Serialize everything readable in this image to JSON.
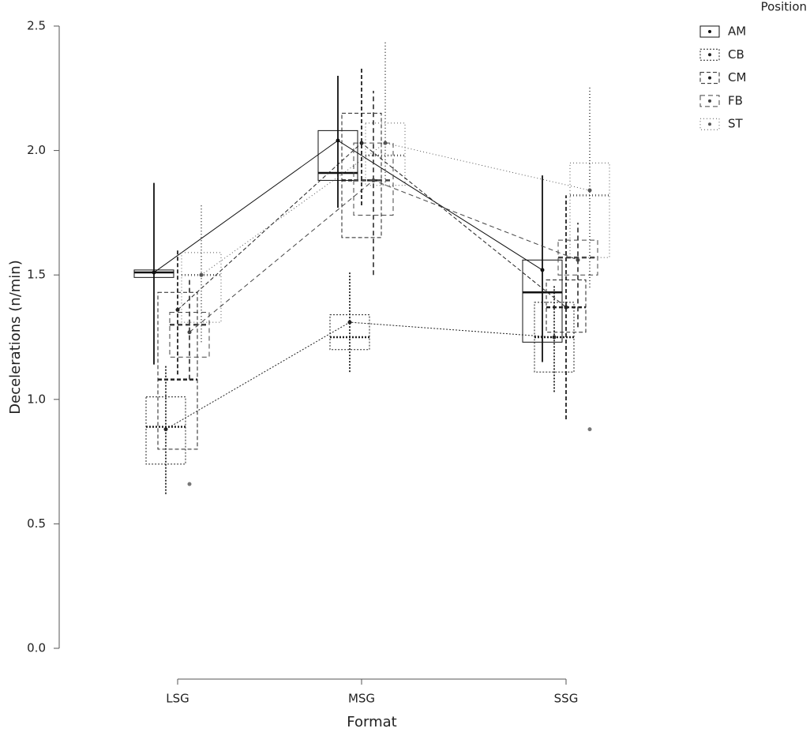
{
  "chart_data": {
    "type": "box",
    "x_label": "Format",
    "y_label": "Decelerations (n/min)",
    "legend_title": "Position",
    "categories": [
      "LSG",
      "MSG",
      "SSG"
    ],
    "ylim": [
      0,
      2.5
    ],
    "yticks": [
      {
        "value": 0,
        "label": "0.0"
      },
      0.5,
      {
        "value": 1,
        "label": "1.0"
      },
      1.5,
      {
        "value": 2,
        "label": "2.0"
      },
      2.5
    ],
    "legend": "top-right",
    "series": [
      {
        "name": "AM",
        "color": "#111111",
        "dash": "none",
        "q1": [
          1.49,
          1.88,
          1.23
        ],
        "median": [
          1.51,
          1.91,
          1.43
        ],
        "q3": [
          1.52,
          2.08,
          1.56
        ],
        "mean": [
          1.51,
          2.04,
          1.52
        ],
        "ci_low": [
          1.14,
          1.77,
          1.15
        ],
        "ci_high": [
          1.87,
          2.3,
          1.9
        ],
        "outliers": [
          [],
          [],
          []
        ]
      },
      {
        "name": "CB",
        "color": "#222222",
        "dash": "2,2",
        "q1": [
          0.74,
          1.2,
          1.11
        ],
        "median": [
          0.89,
          1.25,
          1.25
        ],
        "q3": [
          1.01,
          1.34,
          1.39
        ],
        "mean": [
          0.88,
          1.31,
          1.25
        ],
        "ci_low": [
          0.62,
          1.11,
          1.03
        ],
        "ci_high": [
          1.14,
          1.51,
          1.46
        ],
        "outliers": [
          [],
          [],
          []
        ]
      },
      {
        "name": "CM",
        "color": "#222222",
        "dash": "5,3",
        "q1": [
          0.8,
          1.65,
          1.27
        ],
        "median": [
          1.08,
          1.88,
          1.37
        ],
        "q3": [
          1.43,
          2.15,
          1.48
        ],
        "mean": [
          1.36,
          2.03,
          1.37
        ],
        "ci_low": [
          1.1,
          1.78,
          0.92
        ],
        "ci_high": [
          1.6,
          2.33,
          1.82
        ],
        "outliers": [
          [],
          [],
          []
        ]
      },
      {
        "name": "FB",
        "color": "#444444",
        "dash": "6,4",
        "q1": [
          1.17,
          1.74,
          1.5
        ],
        "median": [
          1.3,
          1.88,
          1.57
        ],
        "q3": [
          1.35,
          2.03,
          1.64
        ],
        "mean": [
          1.27,
          1.88,
          1.56
        ],
        "ci_low": [
          1.08,
          1.5,
          1.29
        ],
        "ci_high": [
          1.49,
          2.24,
          1.71
        ],
        "outliers": [
          [
            0.66
          ],
          [],
          []
        ]
      },
      {
        "name": "ST",
        "color": "#555555",
        "dash": "1,3",
        "q1": [
          1.31,
          1.86,
          1.57
        ],
        "median": [
          1.5,
          1.98,
          1.82
        ],
        "q3": [
          1.59,
          2.11,
          1.95
        ],
        "mean": [
          1.5,
          2.03,
          1.84
        ],
        "ci_low": [
          1.23,
          1.86,
          1.45
        ],
        "ci_high": [
          1.78,
          2.44,
          2.26
        ],
        "outliers": [
          [],
          [],
          [
            0.88
          ]
        ]
      }
    ]
  }
}
